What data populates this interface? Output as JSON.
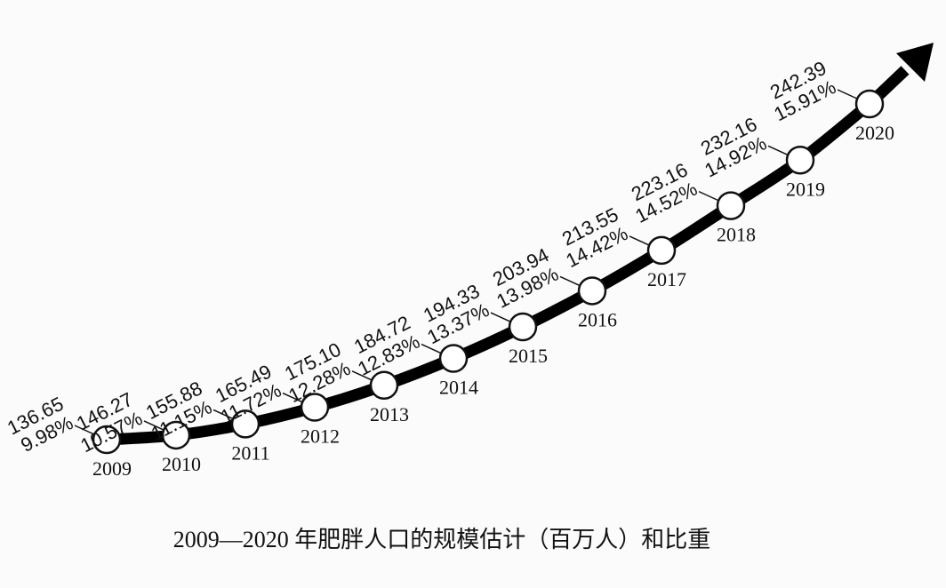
{
  "chart_data": {
    "type": "line",
    "title": "2009—2020 年肥胖人口的规模估计（百万人）和比重",
    "categories": [
      "2009",
      "2010",
      "2011",
      "2012",
      "2013",
      "2014",
      "2015",
      "2016",
      "2017",
      "2018",
      "2019",
      "2020"
    ],
    "color": "#000000",
    "series": [
      {
        "values": [
          136.65,
          146.27,
          155.88,
          165.49,
          175.1,
          184.72,
          194.33,
          203.94,
          213.55,
          223.16,
          232.16,
          242.39
        ],
        "value_labels": [
          "136.65",
          "146.27",
          "155.88",
          "165.49",
          "175.10",
          "184.72",
          "194.33",
          "203.94",
          "213.55",
          "223.16",
          "232.16",
          "242.39"
        ]
      },
      {
        "values": [
          9.98,
          10.57,
          11.15,
          11.72,
          12.28,
          12.83,
          13.37,
          13.98,
          14.42,
          14.52,
          14.92,
          15.91
        ],
        "value_labels": [
          "9.98%",
          "10.57%",
          "11.15%",
          "11.72%",
          "12.28%",
          "12.83%",
          "13.37%",
          "13.98%",
          "14.42%",
          "14.52%",
          "14.92%",
          "15.91%"
        ]
      }
    ]
  }
}
